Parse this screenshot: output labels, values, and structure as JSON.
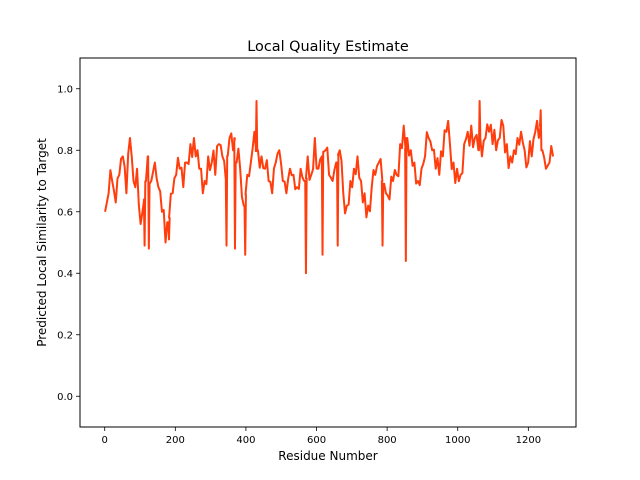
{
  "chart_data": {
    "type": "line",
    "title": "Local Quality Estimate",
    "xlabel": "Residue Number",
    "ylabel": "Predicted Local Similarity to Target",
    "xlim": [
      -70,
      1335
    ],
    "ylim": [
      -0.1,
      1.1
    ],
    "xticks": [
      0,
      200,
      400,
      600,
      800,
      1000,
      1200
    ],
    "yticks": [
      0.0,
      0.2,
      0.4,
      0.6,
      0.8,
      1.0
    ],
    "ytick_labels": [
      "0.0",
      "0.2",
      "0.4",
      "0.6",
      "0.8",
      "1.0"
    ],
    "grid": false,
    "line_color": "#ff3d0d",
    "line_width": 2,
    "series": [
      {
        "x_start": 1,
        "x_end": 1270,
        "note_values": "sampled every 10 residues, with sharp dips added",
        "values": [
          0.6,
          0.66,
          0.7,
          0.63,
          0.72,
          0.78,
          0.66,
          0.84,
          0.7,
          0.74,
          0.56,
          0.64,
          0.78,
          0.7,
          0.76,
          0.68,
          0.6,
          0.5,
          0.58,
          0.66,
          0.72,
          0.74,
          0.68,
          0.76,
          0.82,
          0.84,
          0.8,
          0.74,
          0.7,
          0.78,
          0.76,
          0.72,
          0.82,
          0.78,
          0.7,
          0.84,
          0.8,
          0.76,
          0.74,
          0.62,
          0.72,
          0.76,
          0.86,
          0.8,
          0.78,
          0.74,
          0.7,
          0.66,
          0.76,
          0.8,
          0.7,
          0.66,
          0.74,
          0.72,
          0.68,
          0.74,
          0.7,
          0.78,
          0.72,
          0.84,
          0.74,
          0.78,
          0.8,
          0.72,
          0.7,
          0.76,
          0.8,
          0.66,
          0.62,
          0.7,
          0.74,
          0.78,
          0.7,
          0.66,
          0.62,
          0.68,
          0.72,
          0.76,
          0.7,
          0.66,
          0.64,
          0.7,
          0.72,
          0.82,
          0.88,
          0.84,
          0.8,
          0.76,
          0.7,
          0.74,
          0.78,
          0.84,
          0.8,
          0.74,
          0.72,
          0.78,
          0.86,
          0.82,
          0.76,
          0.74,
          0.72,
          0.82,
          0.86,
          0.88,
          0.84,
          0.8,
          0.78,
          0.84,
          0.86,
          0.82,
          0.8,
          0.84,
          0.88,
          0.82,
          0.78,
          0.8,
          0.84,
          0.86,
          0.8,
          0.76,
          0.78,
          0.86,
          0.84,
          0.8,
          0.74,
          0.76,
          0.78
        ]
      }
    ],
    "dips": [
      {
        "x": 113,
        "y": 0.49
      },
      {
        "x": 125,
        "y": 0.48
      },
      {
        "x": 182,
        "y": 0.51
      },
      {
        "x": 345,
        "y": 0.49
      },
      {
        "x": 369,
        "y": 0.48
      },
      {
        "x": 398,
        "y": 0.46
      },
      {
        "x": 430,
        "y": 0.96
      },
      {
        "x": 570,
        "y": 0.4
      },
      {
        "x": 617,
        "y": 0.46
      },
      {
        "x": 660,
        "y": 0.49
      },
      {
        "x": 787,
        "y": 0.49
      },
      {
        "x": 853,
        "y": 0.44
      },
      {
        "x": 1062,
        "y": 0.96
      },
      {
        "x": 1235,
        "y": 0.93
      }
    ]
  }
}
